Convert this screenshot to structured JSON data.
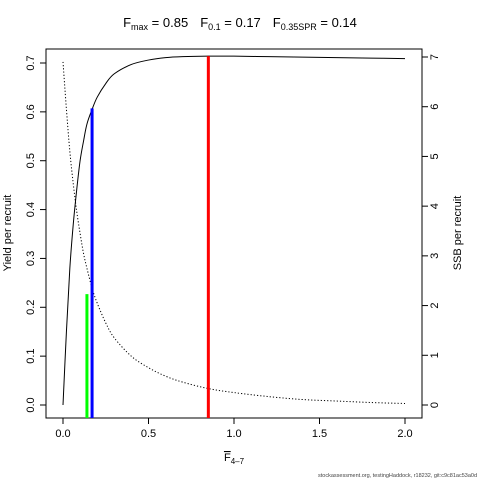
{
  "chart_data": {
    "type": "line",
    "title": {
      "parts": [
        {
          "base": "F",
          "sub": "max",
          "value": " = 0.85"
        },
        {
          "base": "F",
          "sub": "0.1",
          "value": " = 0.17"
        },
        {
          "base": "F",
          "sub": "0.35SPR",
          "value": " = 0.14"
        }
      ]
    },
    "xlabel": {
      "base": "F",
      "sub": "4–7"
    },
    "ylabel_left": "Yield per recruit",
    "ylabel_right": "SSB per recruit",
    "xlim": [
      0,
      2.0
    ],
    "ylim_left": [
      0,
      0.7
    ],
    "ylim_right": [
      0,
      7
    ],
    "x_ticks": [
      {
        "value": 0,
        "label": "0.0"
      },
      {
        "value": 0.5,
        "label": "0.5"
      },
      {
        "value": 1.0,
        "label": "1.0"
      },
      {
        "value": 1.5,
        "label": "1.5"
      },
      {
        "value": 2.0,
        "label": "2.0"
      }
    ],
    "y_ticks_left": [
      {
        "value": 0.0,
        "label": "0.0"
      },
      {
        "value": 0.1,
        "label": "0.1"
      },
      {
        "value": 0.2,
        "label": "0.2"
      },
      {
        "value": 0.3,
        "label": "0.3"
      },
      {
        "value": 0.4,
        "label": "0.4"
      },
      {
        "value": 0.5,
        "label": "0.5"
      },
      {
        "value": 0.6,
        "label": "0.6"
      },
      {
        "value": 0.7,
        "label": "0.7"
      }
    ],
    "y_ticks_right": [
      {
        "value": 0,
        "label": "0"
      },
      {
        "value": 1,
        "label": "1"
      },
      {
        "value": 2,
        "label": "2"
      },
      {
        "value": 3,
        "label": "3"
      },
      {
        "value": 4,
        "label": "4"
      },
      {
        "value": 5,
        "label": "5"
      },
      {
        "value": 6,
        "label": "6"
      },
      {
        "value": 7,
        "label": "7"
      }
    ],
    "series": [
      {
        "axis": "left",
        "style": "solid",
        "color": "#000000",
        "x": [
          0,
          0.02,
          0.04,
          0.06,
          0.08,
          0.1,
          0.12,
          0.14,
          0.17,
          0.2,
          0.25,
          0.3,
          0.4,
          0.5,
          0.6,
          0.7,
          0.85,
          1.0,
          1.2,
          1.4,
          1.6,
          1.8,
          2.0
        ],
        "values": [
          0.0,
          0.15,
          0.28,
          0.37,
          0.44,
          0.5,
          0.54,
          0.575,
          0.605,
          0.63,
          0.658,
          0.678,
          0.697,
          0.706,
          0.711,
          0.713,
          0.714,
          0.714,
          0.713,
          0.712,
          0.711,
          0.71,
          0.709
        ]
      },
      {
        "axis": "right",
        "style": "dotted",
        "color": "#000000",
        "x": [
          0,
          0.02,
          0.04,
          0.06,
          0.08,
          0.1,
          0.12,
          0.14,
          0.17,
          0.2,
          0.25,
          0.3,
          0.4,
          0.5,
          0.6,
          0.7,
          0.85,
          1.0,
          1.2,
          1.4,
          1.6,
          1.8,
          2.0
        ],
        "values": [
          6.9,
          5.95,
          5.1,
          4.45,
          3.9,
          3.45,
          3.05,
          2.75,
          2.35,
          2.05,
          1.65,
          1.35,
          0.98,
          0.75,
          0.58,
          0.46,
          0.33,
          0.25,
          0.17,
          0.11,
          0.08,
          0.05,
          0.03
        ]
      }
    ],
    "reference_lines": [
      {
        "name": "F0.35SPR",
        "x": 0.14,
        "y": 0.227,
        "color": "#00ff00"
      },
      {
        "name": "F0.1",
        "x": 0.17,
        "y": 0.607,
        "color": "#0000ff"
      },
      {
        "name": "Fmax",
        "x": 0.85,
        "y": 0.714,
        "color": "#ff0000"
      }
    ],
    "grid": false,
    "legend": "none"
  },
  "footer": {
    "text": "stockassessment.org, testingHaddock, r18232, git:c9c81ac53a0d"
  }
}
